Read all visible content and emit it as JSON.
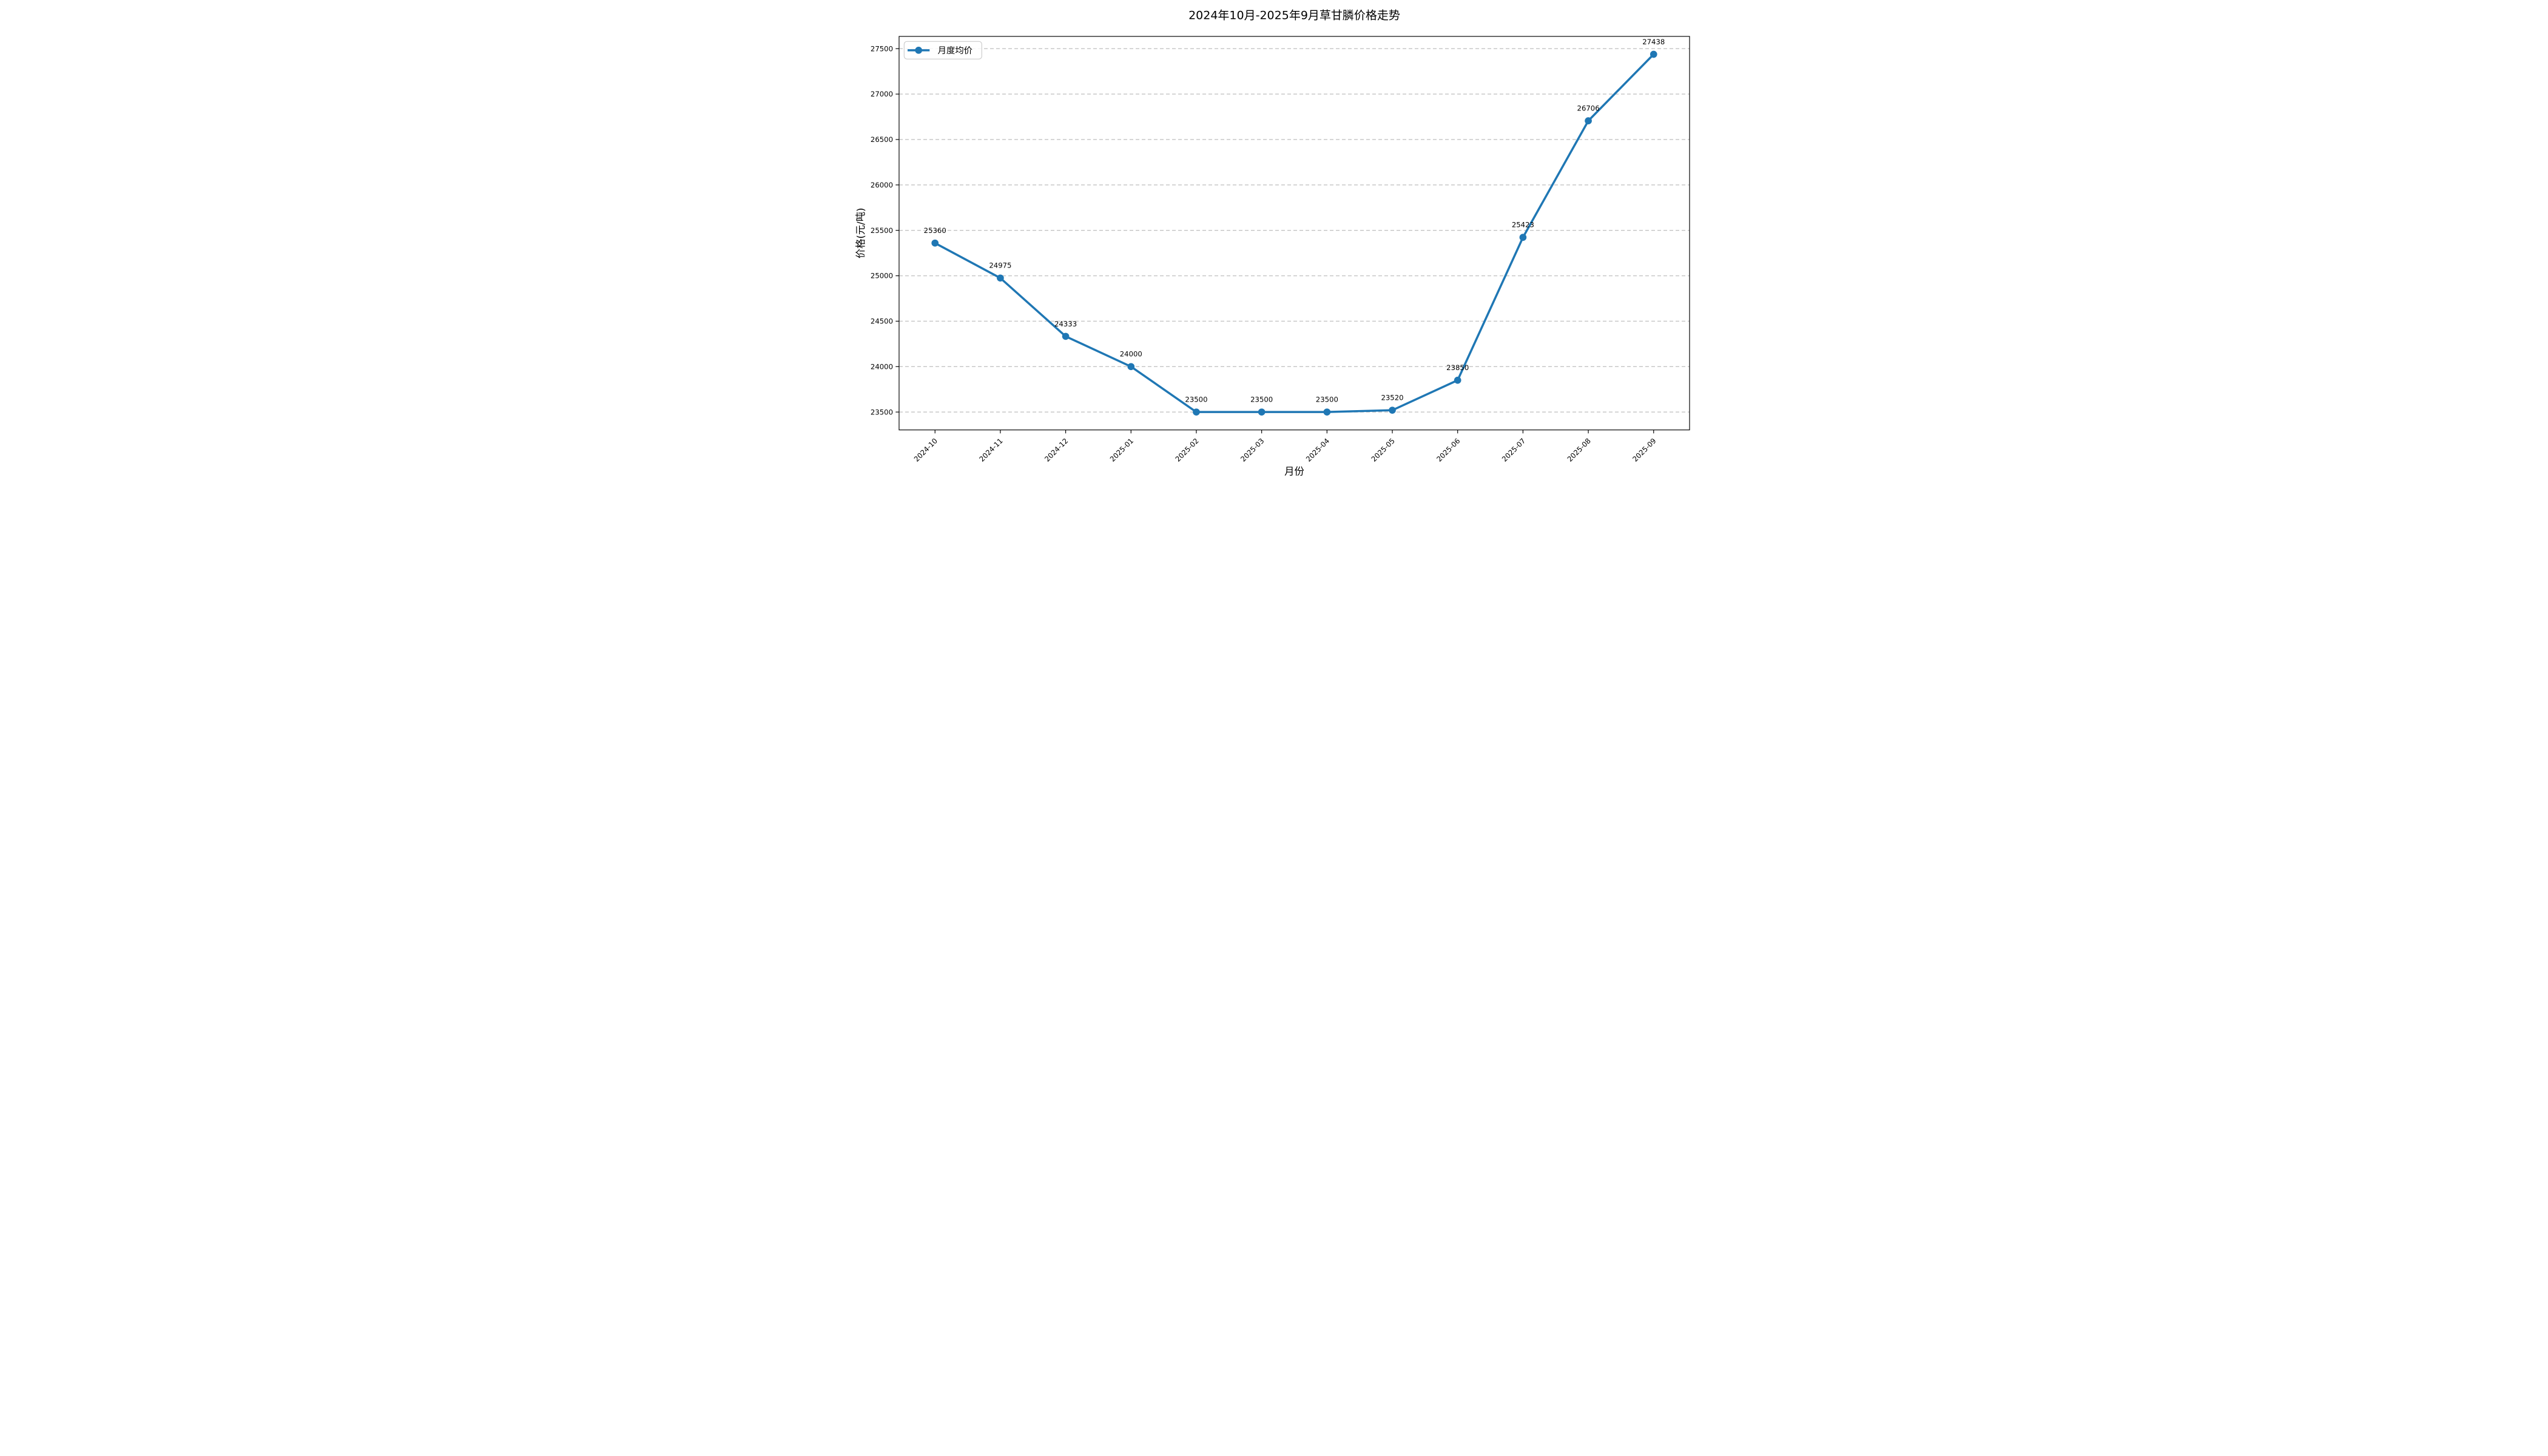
{
  "chart_data": {
    "type": "line",
    "title": "2024年10月-2025年9月草甘膦价格走势",
    "xlabel": "月份",
    "ylabel": "价格(元/吨)",
    "categories": [
      "2024-10",
      "2024-11",
      "2024-12",
      "2025-01",
      "2025-02",
      "2025-03",
      "2025-04",
      "2025-05",
      "2025-06",
      "2025-07",
      "2025-08",
      "2025-09"
    ],
    "series": [
      {
        "name": "月度均价",
        "values": [
          25360,
          24975,
          24333,
          24000,
          23500,
          23500,
          23500,
          23520,
          23850,
          25423,
          26706,
          27438
        ],
        "color": "#1f77b4",
        "marker": "circle",
        "point_labels": [
          "25360",
          "24975",
          "24333",
          "24000",
          "23500",
          "23500",
          "23500",
          "23520",
          "23850",
          "25423",
          "26706",
          "27438"
        ]
      }
    ],
    "yticks": [
      23500,
      24000,
      24500,
      25000,
      25500,
      26000,
      26500,
      27000,
      27500
    ],
    "ylim": [
      23303,
      27635
    ],
    "grid": "horizontal-dashed",
    "grid_color": "#c4c4c4",
    "axis_color": "#000000",
    "legend_position": "upper-left",
    "xtick_rotation_deg": 45
  }
}
